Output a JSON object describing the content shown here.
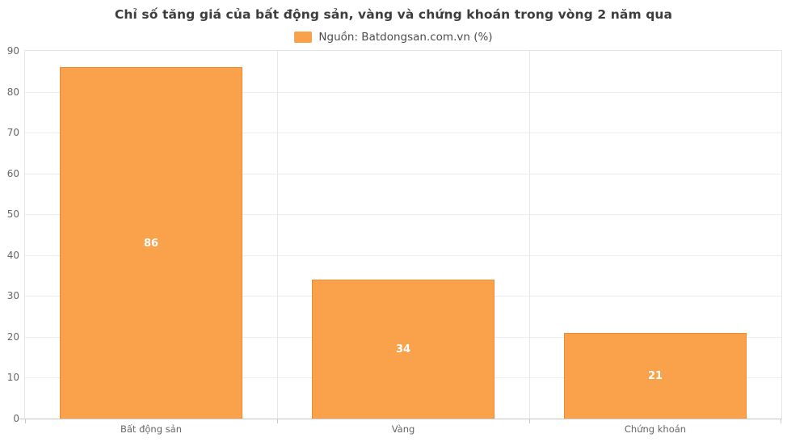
{
  "chart_data": {
    "type": "bar",
    "title": "Chỉ số tăng giá của bất động sản, vàng và chứng khoán trong vòng 2 năm qua",
    "legend": [
      "Nguồn: Batdongsan.com.vn (%)"
    ],
    "legend_position": "top",
    "categories": [
      "Bất động sản",
      "Vàng",
      "Chứng khoán"
    ],
    "values": [
      86,
      34,
      21
    ],
    "xlabel": "",
    "ylabel": "",
    "ylim": [
      0,
      90
    ],
    "ytick_step": 10,
    "grid": true,
    "data_labels": true
  },
  "colors": {
    "bar_fill": "#f9a14b",
    "bar_border": "#ee8c34",
    "legend_swatch": "#f9a14b",
    "title_text": "#3d3d3d",
    "legend_text": "#4c4c4c",
    "axis_text": "#666666",
    "grid_line": "#ededed",
    "plot_border": "#e5e5e5",
    "baseline": "#c7c7c7",
    "value_text": "#ffffff"
  }
}
